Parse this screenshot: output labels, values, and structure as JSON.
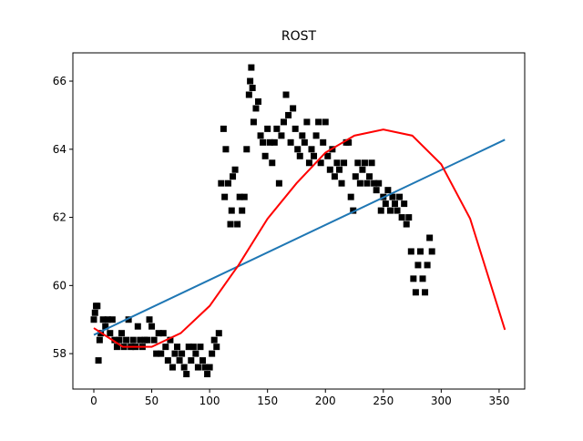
{
  "chart_data": {
    "type": "scatter",
    "title": "ROST",
    "xlim": [
      -18.1,
      372.1
    ],
    "ylim": [
      56.96,
      66.83
    ],
    "xticks": [
      0,
      50,
      100,
      150,
      200,
      250,
      300,
      350
    ],
    "yticks": [
      58,
      60,
      62,
      64,
      66
    ],
    "series": [
      {
        "type": "scatter",
        "color": "#000000",
        "x": [
          0,
          1,
          2,
          3,
          4,
          5,
          6,
          8,
          10,
          12,
          14,
          16,
          18,
          20,
          22,
          24,
          26,
          28,
          30,
          32,
          34,
          36,
          38,
          40,
          42,
          44,
          46,
          48,
          50,
          52,
          54,
          56,
          58,
          60,
          62,
          64,
          66,
          68,
          70,
          72,
          74,
          76,
          78,
          80,
          82,
          84,
          86,
          88,
          90,
          92,
          94,
          96,
          98,
          100,
          102,
          104,
          106,
          108,
          110,
          112,
          113,
          114,
          116,
          118,
          119,
          120,
          122,
          124,
          126,
          128,
          130,
          132,
          134,
          135,
          136,
          137,
          138,
          140,
          142,
          144,
          146,
          148,
          150,
          152,
          154,
          156,
          158,
          160,
          162,
          164,
          166,
          168,
          170,
          172,
          174,
          176,
          178,
          180,
          182,
          184,
          186,
          188,
          190,
          192,
          194,
          196,
          198,
          200,
          202,
          204,
          206,
          208,
          210,
          212,
          214,
          216,
          218,
          220,
          222,
          224,
          226,
          228,
          230,
          232,
          234,
          236,
          238,
          240,
          242,
          244,
          246,
          248,
          250,
          252,
          254,
          256,
          258,
          260,
          262,
          264,
          266,
          268,
          270,
          272,
          274,
          276,
          278,
          280,
          282,
          284,
          286,
          288,
          290,
          292
        ],
        "values": [
          59.0,
          59.2,
          59.4,
          59.4,
          57.8,
          58.4,
          58.6,
          59.0,
          58.8,
          59.0,
          58.6,
          59.0,
          58.4,
          58.2,
          58.4,
          58.6,
          58.2,
          58.4,
          59.0,
          58.2,
          58.4,
          58.2,
          58.8,
          58.4,
          58.2,
          58.4,
          58.4,
          59.0,
          58.8,
          58.4,
          58.0,
          58.6,
          58.0,
          58.6,
          58.2,
          57.8,
          58.4,
          57.6,
          58.0,
          58.2,
          57.8,
          58.0,
          57.6,
          57.4,
          58.2,
          57.8,
          58.2,
          58.0,
          57.6,
          58.2,
          57.8,
          57.6,
          57.4,
          57.6,
          58.0,
          58.4,
          58.2,
          58.6,
          63.0,
          64.6,
          62.6,
          64.0,
          63.0,
          61.8,
          62.2,
          63.2,
          63.4,
          61.8,
          62.6,
          62.2,
          62.6,
          64.0,
          65.6,
          66.0,
          66.4,
          65.8,
          64.8,
          65.2,
          65.4,
          64.4,
          64.2,
          63.8,
          64.6,
          64.2,
          63.6,
          64.2,
          64.6,
          63.0,
          64.4,
          64.8,
          65.6,
          65.0,
          64.2,
          65.2,
          64.6,
          64.0,
          63.8,
          64.4,
          64.2,
          64.8,
          63.6,
          64.0,
          63.8,
          64.4,
          64.8,
          63.6,
          64.2,
          64.8,
          63.8,
          63.4,
          64.0,
          63.2,
          63.6,
          63.4,
          63.0,
          63.6,
          64.2,
          64.2,
          62.6,
          62.2,
          63.2,
          63.6,
          63.0,
          63.4,
          63.6,
          63.0,
          63.2,
          63.6,
          63.0,
          62.8,
          63.0,
          62.2,
          62.6,
          62.4,
          62.8,
          62.2,
          62.6,
          62.4,
          62.2,
          62.6,
          62.0,
          62.4,
          61.8,
          62.0,
          61.0,
          60.2,
          59.8,
          60.6,
          61.0,
          60.2,
          59.8,
          60.6,
          61.4,
          61.0
        ]
      },
      {
        "type": "line",
        "color": "#1f77b4",
        "x": [
          0,
          355
        ],
        "values": [
          58.55,
          64.28
        ]
      },
      {
        "type": "line",
        "color": "#ff0000",
        "x": [
          0,
          25,
          50,
          75,
          100,
          125,
          150,
          175,
          200,
          225,
          250,
          275,
          300,
          325,
          355
        ],
        "values": [
          58.75,
          58.2,
          58.2,
          58.6,
          59.4,
          60.6,
          61.96,
          63.0,
          63.9,
          64.4,
          64.58,
          64.4,
          63.56,
          61.96,
          58.7
        ]
      }
    ]
  }
}
